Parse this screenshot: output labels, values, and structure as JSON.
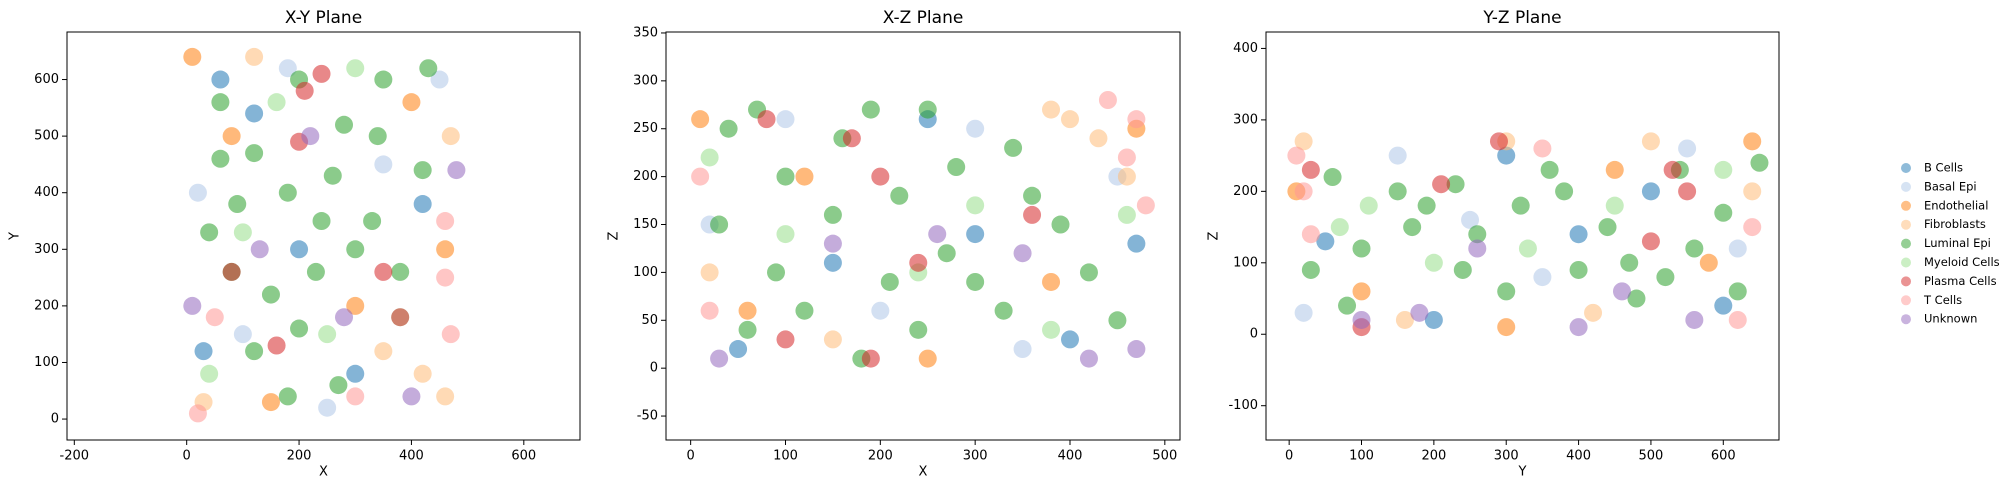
{
  "chart_data": [
    {
      "type": "scatter",
      "title": "X-Y Plane",
      "xlabel": "X",
      "ylabel": "Y",
      "xlim": [
        -213,
        700
      ],
      "ylim": [
        -37,
        684
      ],
      "xticks": [
        -200,
        0,
        200,
        400,
        600
      ],
      "yticks": [
        0,
        100,
        200,
        300,
        400,
        500,
        600
      ],
      "series": [
        {
          "name": "B Cells",
          "color": "#1f77b4",
          "x": [
            30,
            120,
            300,
            420,
            200,
            60
          ],
          "y": [
            120,
            540,
            80,
            380,
            300,
            600
          ]
        },
        {
          "name": "Basal Epi",
          "color": "#aec7e8",
          "x": [
            20,
            250,
            450,
            100,
            350,
            180
          ],
          "y": [
            400,
            20,
            600,
            150,
            450,
            620
          ]
        },
        {
          "name": "Endothelial",
          "color": "#ff7f0e",
          "x": [
            10,
            460,
            300,
            150,
            400,
            80
          ],
          "y": [
            640,
            300,
            200,
            30,
            560,
            500
          ]
        },
        {
          "name": "Fibroblasts",
          "color": "#ffbb78",
          "x": [
            350,
            420,
            460,
            30,
            120,
            470
          ],
          "y": [
            120,
            80,
            40,
            30,
            640,
            500
          ]
        },
        {
          "name": "Luminal Epi",
          "color": "#2ca02c",
          "x": [
            60,
            120,
            200,
            280,
            350,
            430,
            90,
            180,
            260,
            330,
            80,
            150,
            230,
            300,
            380,
            120,
            200,
            270,
            180,
            40,
            240,
            340,
            420,
            60
          ],
          "y": [
            560,
            470,
            600,
            520,
            600,
            620,
            380,
            400,
            430,
            350,
            260,
            220,
            260,
            300,
            260,
            120,
            160,
            60,
            40,
            330,
            350,
            500,
            440,
            460
          ]
        },
        {
          "name": "Myeloid Cells",
          "color": "#98df8a",
          "x": [
            100,
            250,
            380,
            40,
            300,
            160
          ],
          "y": [
            330,
            150,
            180,
            80,
            620,
            560
          ]
        },
        {
          "name": "Plasma Cells",
          "color": "#d62728",
          "x": [
            210,
            240,
            80,
            350,
            160,
            200,
            380
          ],
          "y": [
            580,
            610,
            260,
            260,
            130,
            490,
            180
          ]
        },
        {
          "name": "T Cells",
          "color": "#ff9896",
          "x": [
            460,
            470,
            20,
            460,
            300,
            50
          ],
          "y": [
            250,
            150,
            10,
            350,
            40,
            180
          ]
        },
        {
          "name": "Unknown",
          "color": "#9467bd",
          "x": [
            220,
            10,
            130,
            400,
            480,
            280
          ],
          "y": [
            500,
            200,
            300,
            40,
            440,
            180
          ]
        }
      ]
    },
    {
      "type": "scatter",
      "title": "X-Z Plane",
      "xlabel": "X",
      "ylabel": "Z",
      "xlim": [
        -26,
        516
      ],
      "ylim": [
        -75,
        351
      ],
      "xticks": [
        0,
        100,
        200,
        300,
        400,
        500
      ],
      "yticks": [
        -50,
        0,
        50,
        100,
        150,
        200,
        250,
        300,
        350
      ],
      "series": [
        {
          "name": "B Cells",
          "color": "#1f77b4",
          "x": [
            50,
            150,
            300,
            400,
            470,
            250
          ],
          "y": [
            20,
            110,
            140,
            30,
            130,
            260
          ]
        },
        {
          "name": "Basal Epi",
          "color": "#aec7e8",
          "x": [
            20,
            100,
            350,
            450,
            200,
            300
          ],
          "y": [
            150,
            260,
            20,
            200,
            60,
            250
          ]
        },
        {
          "name": "Endothelial",
          "color": "#ff7f0e",
          "x": [
            10,
            470,
            250,
            120,
            380,
            60
          ],
          "y": [
            260,
            250,
            10,
            200,
            90,
            60
          ]
        },
        {
          "name": "Fibroblasts",
          "color": "#ffbb78",
          "x": [
            430,
            400,
            460,
            20,
            150,
            380
          ],
          "y": [
            240,
            260,
            200,
            100,
            30,
            270
          ]
        },
        {
          "name": "Luminal Epi",
          "color": "#2ca02c",
          "x": [
            40,
            100,
            160,
            220,
            280,
            340,
            30,
            90,
            150,
            210,
            270,
            330,
            390,
            60,
            120,
            180,
            240,
            300,
            360,
            420,
            450,
            250,
            70,
            190
          ],
          "y": [
            250,
            200,
            240,
            180,
            210,
            230,
            150,
            100,
            160,
            90,
            120,
            60,
            150,
            40,
            60,
            10,
            40,
            90,
            180,
            100,
            50,
            270,
            270,
            270
          ]
        },
        {
          "name": "Myeloid Cells",
          "color": "#98df8a",
          "x": [
            100,
            240,
            380,
            20,
            300,
            460
          ],
          "y": [
            140,
            100,
            40,
            220,
            170,
            160
          ]
        },
        {
          "name": "Plasma Cells",
          "color": "#d62728",
          "x": [
            170,
            200,
            240,
            80,
            360,
            190,
            100
          ],
          "y": [
            240,
            200,
            110,
            260,
            160,
            10,
            30
          ]
        },
        {
          "name": "T Cells",
          "color": "#ff9896",
          "x": [
            470,
            460,
            480,
            10,
            440,
            20
          ],
          "y": [
            260,
            220,
            170,
            200,
            280,
            60
          ]
        },
        {
          "name": "Unknown",
          "color": "#9467bd",
          "x": [
            150,
            260,
            470,
            30,
            350,
            420
          ],
          "y": [
            130,
            140,
            20,
            10,
            120,
            10
          ]
        }
      ]
    },
    {
      "type": "scatter",
      "title": "Y-Z Plane",
      "xlabel": "Y",
      "ylabel": "Z",
      "legend": "right",
      "xlim": [
        -32,
        677
      ],
      "ylim": [
        -148,
        423
      ],
      "xticks": [
        0,
        100,
        200,
        300,
        400,
        500,
        600
      ],
      "yticks": [
        -100,
        0,
        100,
        200,
        300,
        400
      ],
      "series": [
        {
          "name": "B Cells",
          "color": "#1f77b4",
          "x": [
            50,
            200,
            400,
            600,
            300,
            500
          ],
          "y": [
            130,
            20,
            140,
            40,
            250,
            200
          ]
        },
        {
          "name": "Basal Epi",
          "color": "#aec7e8",
          "x": [
            20,
            150,
            350,
            550,
            620,
            250
          ],
          "y": [
            30,
            250,
            80,
            260,
            120,
            160
          ]
        },
        {
          "name": "Endothelial",
          "color": "#ff7f0e",
          "x": [
            10,
            640,
            300,
            450,
            100,
            580
          ],
          "y": [
            200,
            270,
            10,
            230,
            60,
            100
          ]
        },
        {
          "name": "Fibroblasts",
          "color": "#ffbb78",
          "x": [
            300,
            20,
            640,
            160,
            500,
            420
          ],
          "y": [
            270,
            270,
            200,
            20,
            270,
            30
          ]
        },
        {
          "name": "Luminal Epi",
          "color": "#2ca02c",
          "x": [
            150,
            190,
            230,
            170,
            470,
            520,
            560,
            480,
            60,
            100,
            260,
            320,
            360,
            400,
            440,
            600,
            620,
            80,
            300,
            540,
            240,
            380,
            30,
            650
          ],
          "y": [
            200,
            180,
            210,
            150,
            100,
            80,
            120,
            50,
            220,
            120,
            140,
            180,
            230,
            90,
            150,
            170,
            60,
            40,
            60,
            230,
            90,
            200,
            90,
            240
          ]
        },
        {
          "name": "Myeloid Cells",
          "color": "#98df8a",
          "x": [
            110,
            330,
            600,
            70,
            450,
            200
          ],
          "y": [
            180,
            120,
            230,
            150,
            180,
            100
          ]
        },
        {
          "name": "Plasma Cells",
          "color": "#d62728",
          "x": [
            30,
            550,
            530,
            210,
            290,
            500,
            100
          ],
          "y": [
            230,
            200,
            230,
            210,
            270,
            130,
            10
          ]
        },
        {
          "name": "T Cells",
          "color": "#ff9896",
          "x": [
            10,
            20,
            640,
            30,
            350,
            620
          ],
          "y": [
            250,
            200,
            150,
            140,
            260,
            20
          ]
        },
        {
          "name": "Unknown",
          "color": "#9467bd",
          "x": [
            100,
            180,
            400,
            560,
            260,
            460
          ],
          "y": [
            20,
            30,
            10,
            20,
            120,
            60
          ]
        }
      ]
    }
  ]
}
